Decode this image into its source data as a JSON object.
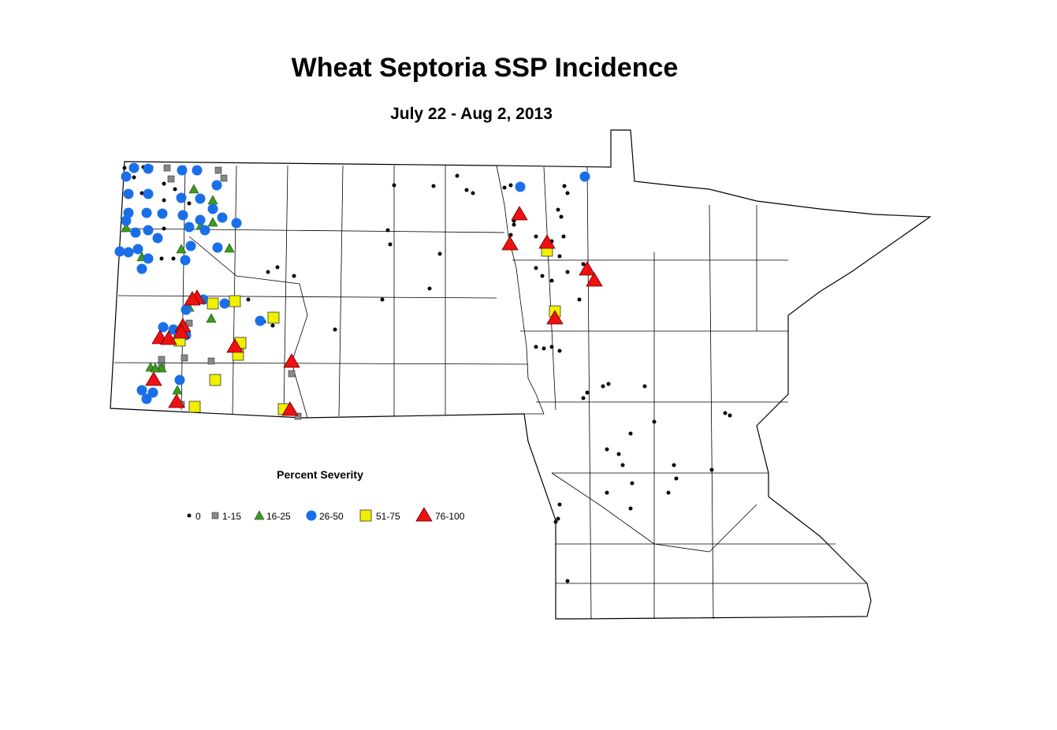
{
  "title": "Wheat Septoria SSP Incidence",
  "subtitle": "July 22 - Aug 2, 2013",
  "legend": {
    "title": "Percent Severity",
    "items": [
      {
        "label": "0"
      },
      {
        "label": "1-15"
      },
      {
        "label": "16-25"
      },
      {
        "label": "26-50"
      },
      {
        "label": "51-75"
      },
      {
        "label": "76-100"
      }
    ]
  }
}
